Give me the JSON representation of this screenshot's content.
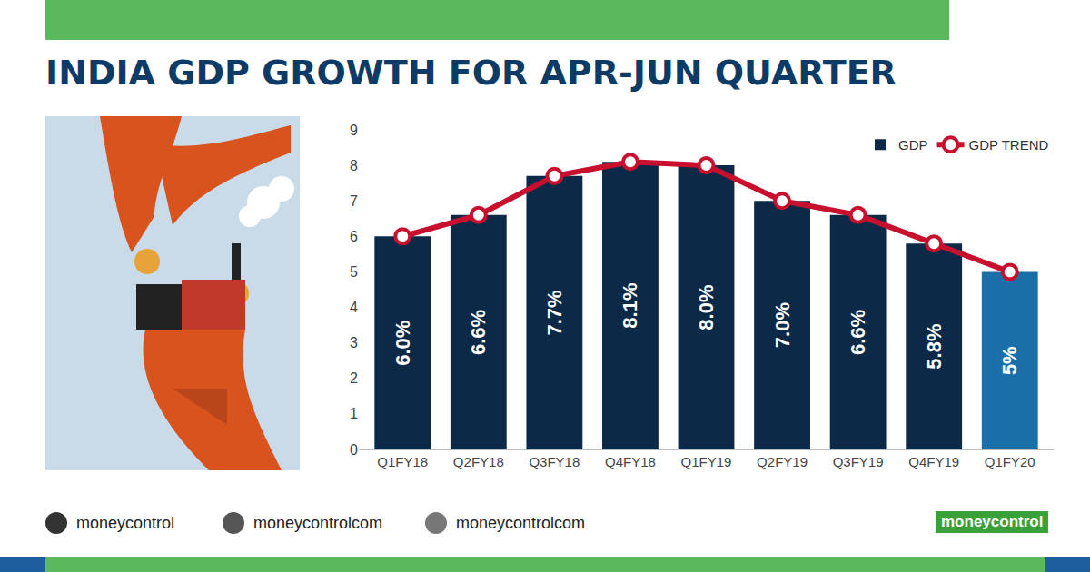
{
  "chart_data": {
    "type": "bar",
    "title": "INDIA GDP GROWTH FOR APR-JUN QUARTER",
    "categories": [
      "Q1FY18",
      "Q2FY18",
      "Q3FY18",
      "Q4FY18",
      "Q1FY19",
      "Q2FY19",
      "Q3FY19",
      "Q4FY19",
      "Q1FY20"
    ],
    "series": [
      {
        "name": "GDP",
        "type": "bar",
        "color": "#0c2a47",
        "colors": [
          "#0c2a47",
          "#0c2a47",
          "#0c2a47",
          "#0c2a47",
          "#0c2a47",
          "#0c2a47",
          "#0c2a47",
          "#0c2a47",
          "#1a6fa8"
        ],
        "values": [
          6.0,
          6.6,
          7.7,
          8.1,
          8.0,
          7.0,
          6.6,
          5.8,
          5
        ],
        "value_labels": [
          "6.0%",
          "6.6%",
          "7.7%",
          "8.1%",
          "8.0%",
          "7.0%",
          "6.6%",
          "5.8%",
          "5%"
        ]
      },
      {
        "name": "GDP TREND",
        "type": "line",
        "color": "#c8102e",
        "marker": "circle",
        "line_style": "solid",
        "values": [
          6.0,
          6.6,
          7.7,
          8.1,
          8.0,
          7.0,
          6.6,
          5.8,
          5
        ]
      }
    ],
    "ylim": [
      0,
      9
    ],
    "yticks": [
      0,
      1,
      2,
      3,
      4,
      5,
      6,
      7,
      8,
      9
    ],
    "grid": false,
    "data_labels": true,
    "legend": "upper right"
  },
  "footer": {
    "facebook": "moneycontrol",
    "twitter": "moneycontrolcom",
    "instagram": "moneycontrolcom",
    "logo": "moneycontrol"
  }
}
